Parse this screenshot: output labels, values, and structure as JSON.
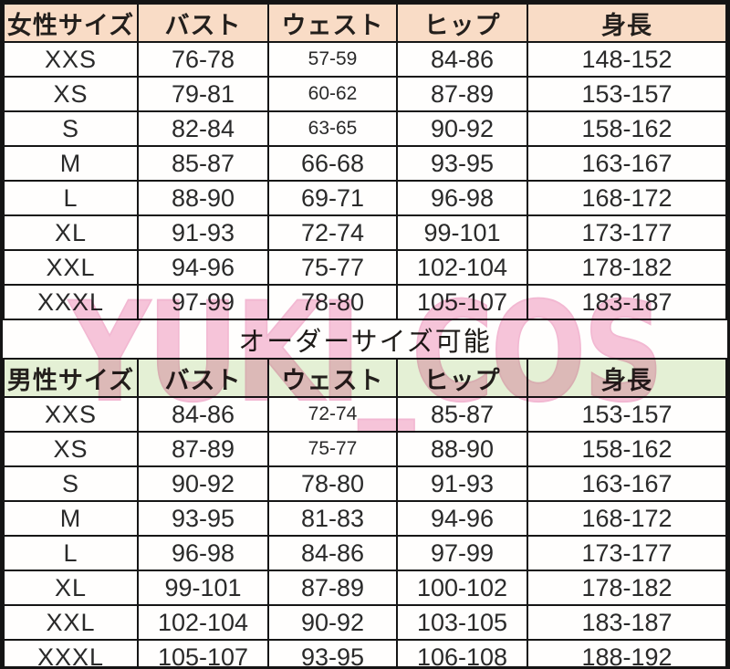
{
  "chart_data": [
    {
      "type": "table",
      "title": "女性サイズ",
      "columns": [
        "女性サイズ",
        "バスト",
        "ウェスト",
        "ヒップ",
        "身長"
      ],
      "rows": [
        [
          "XXS",
          "76-78",
          "57-59",
          "84-86",
          "148-152"
        ],
        [
          "XS",
          "79-81",
          "60-62",
          "87-89",
          "153-157"
        ],
        [
          "S",
          "82-84",
          "63-65",
          "90-92",
          "158-162"
        ],
        [
          "M",
          "85-87",
          "66-68",
          "93-95",
          "163-167"
        ],
        [
          "L",
          "88-90",
          "69-71",
          "96-98",
          "168-172"
        ],
        [
          "XL",
          "91-93",
          "72-74",
          "99-101",
          "173-177"
        ],
        [
          "XXL",
          "94-96",
          "75-77",
          "102-104",
          "178-182"
        ],
        [
          "XXXL",
          "97-99",
          "78-80",
          "105-107",
          "183-187"
        ]
      ],
      "header_bg": "#f9dcc6",
      "small_font_cells": [
        [
          0,
          2
        ],
        [
          1,
          2
        ],
        [
          2,
          2
        ]
      ],
      "grid": "on",
      "border_color": "#161616"
    },
    {
      "type": "table",
      "title": "男性サイズ",
      "columns": [
        "男性サイズ",
        "バスト",
        "ウェスト",
        "ヒップ",
        "身長"
      ],
      "rows": [
        [
          "XXS",
          "84-86",
          "72-74",
          "85-87",
          "153-157"
        ],
        [
          "XS",
          "87-89",
          "75-77",
          "88-90",
          "158-162"
        ],
        [
          "S",
          "90-92",
          "78-80",
          "91-93",
          "163-167"
        ],
        [
          "M",
          "93-95",
          "81-83",
          "94-96",
          "168-172"
        ],
        [
          "L",
          "96-98",
          "84-86",
          "97-99",
          "173-177"
        ],
        [
          "XL",
          "99-101",
          "87-89",
          "100-102",
          "178-182"
        ],
        [
          "XXL",
          "102-104",
          "90-92",
          "103-105",
          "183-187"
        ],
        [
          "XXXL",
          "105-107",
          "93-95",
          "106-108",
          "188-192"
        ]
      ],
      "header_bg": "#e4f0d5",
      "small_font_cells": [
        [
          0,
          2
        ],
        [
          1,
          2
        ]
      ],
      "grid": "on",
      "border_color": "#161616"
    }
  ],
  "order_note": "オーダーサイズ可能",
  "watermark": {
    "text": "YUKI_COS",
    "color": "#ef95bd"
  }
}
